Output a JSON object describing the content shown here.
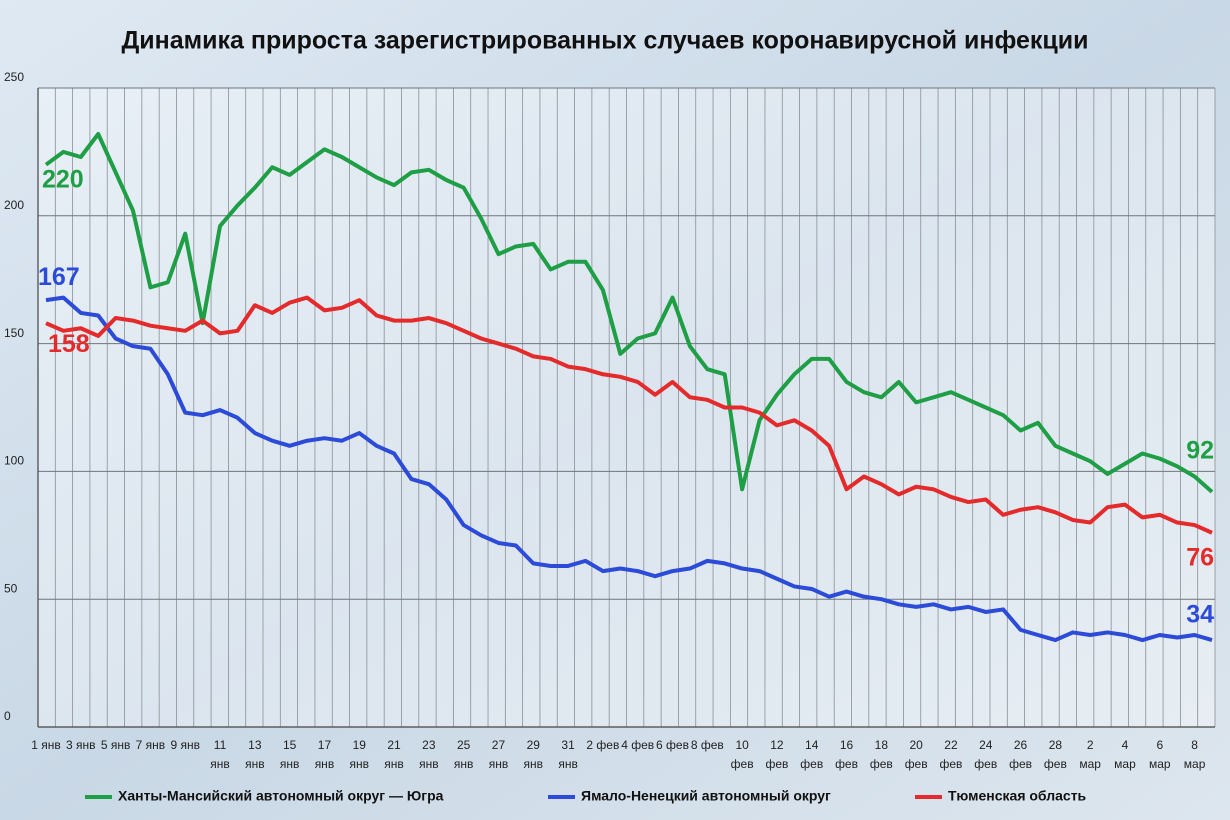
{
  "chart_data": {
    "type": "line",
    "title": "Динамика прироста зарегистрированных случаев коронавирусной инфекции",
    "categories": [
      "1 янв",
      null,
      "3 янв",
      null,
      "5 янв",
      null,
      "7 янв",
      null,
      "9 янв",
      null,
      "11 янв",
      null,
      "13 янв",
      null,
      "15 янв",
      null,
      "17 янв",
      null,
      "19 янв",
      null,
      "21 янв",
      null,
      "23 янв",
      null,
      "25 янв",
      null,
      "27 янв",
      null,
      "29 янв",
      null,
      "31 янв",
      null,
      "2 фев",
      null,
      "4 фев",
      null,
      "6 фев",
      null,
      "8 фев",
      null,
      "10 фев",
      null,
      "12 фев",
      null,
      "14 фев",
      null,
      "16 фев",
      null,
      "18 фев",
      null,
      "20 фев",
      null,
      "22 фев",
      null,
      "24 фев",
      null,
      "26 фев",
      null,
      "28 фев",
      null,
      "2 мар",
      null,
      "4 мар",
      null,
      "6 мар",
      null,
      "8 мар",
      null
    ],
    "series": [
      {
        "name": "Ханты-Мансийский автономный округ — Югра",
        "color": "#1e9e45",
        "values": [
          220,
          225,
          223,
          232,
          217,
          202,
          172,
          174,
          193,
          158,
          196,
          204,
          211,
          219,
          216,
          221,
          226,
          223,
          219,
          215,
          212,
          217,
          218,
          214,
          211,
          199,
          185,
          188,
          189,
          179,
          182,
          182,
          171,
          146,
          152,
          154,
          168,
          149,
          140,
          138,
          93,
          120,
          130,
          138,
          144,
          144,
          135,
          131,
          129,
          135,
          127,
          129,
          131,
          128,
          125,
          122,
          116,
          119,
          110,
          107,
          104,
          99,
          103,
          107,
          105,
          102,
          98,
          92
        ]
      },
      {
        "name": "Ямало-Ненецкий автономный округ",
        "color": "#2b4bd8",
        "values": [
          167,
          168,
          162,
          161,
          152,
          149,
          148,
          138,
          123,
          122,
          124,
          121,
          115,
          112,
          110,
          112,
          113,
          112,
          115,
          110,
          107,
          97,
          95,
          89,
          79,
          75,
          72,
          71,
          64,
          63,
          63,
          65,
          61,
          62,
          61,
          59,
          61,
          62,
          65,
          64,
          62,
          61,
          58,
          55,
          54,
          51,
          53,
          51,
          50,
          48,
          47,
          48,
          46,
          47,
          45,
          46,
          38,
          36,
          34,
          37,
          36,
          37,
          36,
          34,
          36,
          35,
          36,
          34
        ]
      },
      {
        "name": "Тюменская область",
        "color": "#e42a2a",
        "values": [
          158,
          155,
          156,
          153,
          160,
          159,
          157,
          156,
          155,
          159,
          154,
          155,
          165,
          162,
          166,
          168,
          163,
          164,
          167,
          161,
          159,
          159,
          160,
          158,
          155,
          152,
          150,
          148,
          145,
          144,
          141,
          140,
          138,
          137,
          135,
          130,
          135,
          129,
          128,
          125,
          125,
          123,
          118,
          120,
          116,
          110,
          93,
          98,
          95,
          91,
          94,
          93,
          90,
          88,
          89,
          83,
          85,
          86,
          84,
          81,
          80,
          86,
          87,
          82,
          83,
          80,
          79,
          76
        ]
      }
    ],
    "ylim": [
      0,
      250
    ],
    "yticks": [
      0,
      50,
      100,
      150,
      200,
      250
    ],
    "grid": true
  }
}
